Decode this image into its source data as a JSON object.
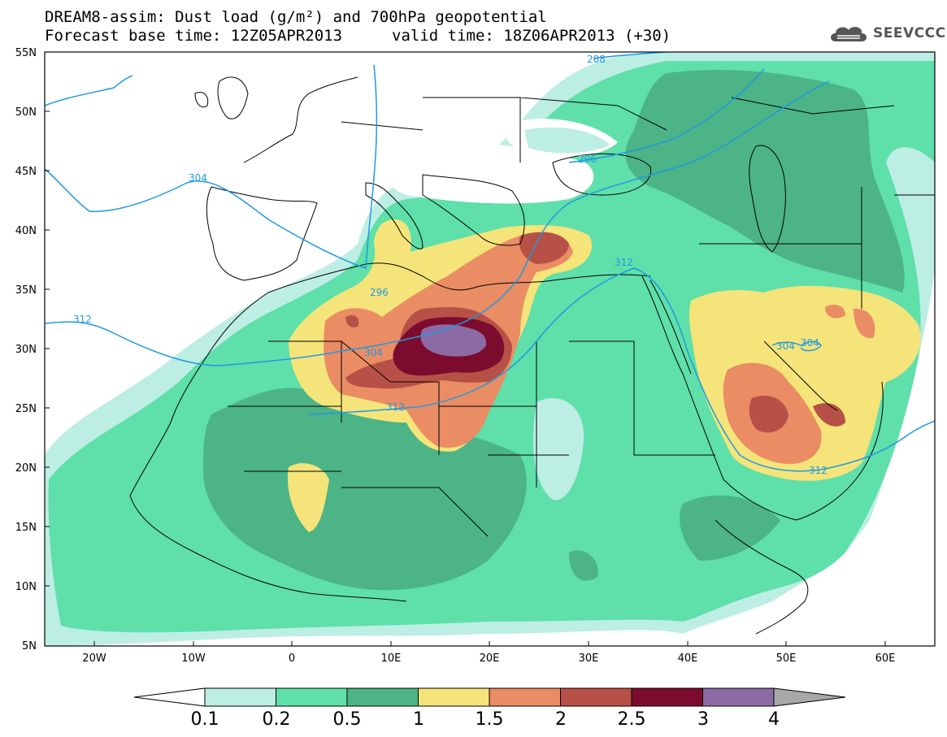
{
  "header": {
    "title_line1": "DREAM8-assim: Dust load (g/m²) and 700hPa geopotential",
    "title_line2_left": "Forecast base time: 12Z05APR2013",
    "title_line2_right": "valid time: 18Z06APR2013 (+30)"
  },
  "logo": {
    "text": "SEEVCCC",
    "icon": "cloud-icon"
  },
  "axes": {
    "lat_labels": [
      "55N",
      "50N",
      "45N",
      "40N",
      "35N",
      "30N",
      "25N",
      "20N",
      "15N",
      "10N",
      "5N"
    ],
    "lon_labels": [
      "20W",
      "10W",
      "0",
      "10E",
      "20E",
      "30E",
      "40E",
      "50E",
      "60E"
    ],
    "lat_range": [
      5,
      55
    ],
    "lon_range": [
      -25,
      65
    ]
  },
  "contour_labels": [
    "288",
    "296",
    "296",
    "296",
    "304",
    "304",
    "304",
    "304",
    "312",
    "312",
    "312",
    "312"
  ],
  "colorbar": {
    "ticks": [
      "0.1",
      "0.2",
      "0.5",
      "1",
      "1.5",
      "2",
      "2.5",
      "3",
      "4"
    ],
    "colors": [
      "#bdeee3",
      "#5fdfaa",
      "#4cb486",
      "#f5e47a",
      "#ea8c64",
      "#b75046",
      "#7c0c2e",
      "#8c6ba4"
    ],
    "under_color": "#ffffff",
    "over_color": "#a8a8a8"
  },
  "colors": {
    "land_border": "#000000",
    "geopotential_line": "#1f9ae0",
    "background": "#ffffff"
  }
}
